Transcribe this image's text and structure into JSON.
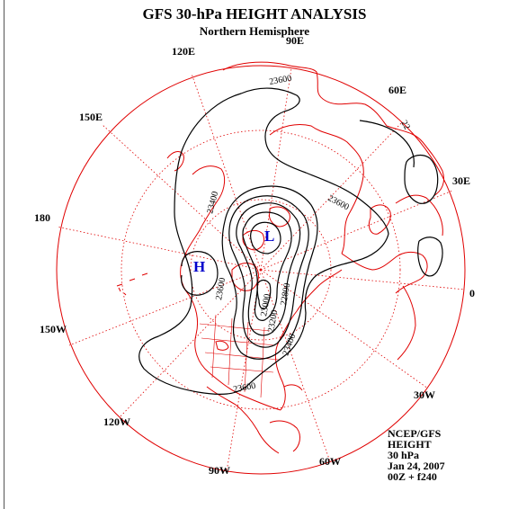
{
  "header": {
    "title": "GFS 30-hPa HEIGHT ANALYSIS",
    "subtitle": "Northern Hemisphere"
  },
  "longitude_labels": [
    {
      "id": "lon-90e",
      "text": "90E"
    },
    {
      "id": "lon-60e",
      "text": "60E"
    },
    {
      "id": "lon-30e",
      "text": "30E"
    },
    {
      "id": "lon-0",
      "text": "0"
    },
    {
      "id": "lon-30w",
      "text": "30W"
    },
    {
      "id": "lon-60w",
      "text": "60W"
    },
    {
      "id": "lon-90w",
      "text": "90W"
    },
    {
      "id": "lon-120w",
      "text": "120W"
    },
    {
      "id": "lon-150w",
      "text": "150W"
    },
    {
      "id": "lon-180",
      "text": "180"
    },
    {
      "id": "lon-150e",
      "text": "150E"
    },
    {
      "id": "lon-120e",
      "text": "120E"
    }
  ],
  "contour_labels": {
    "c1": "23600",
    "c2": "23600",
    "c3": "23400",
    "c4": "23600",
    "c5": "23400",
    "c6": "23200",
    "c7": "23000",
    "c8": "22800",
    "c9": "23600",
    "c10": "22"
  },
  "systems": {
    "low": "L",
    "high": "H"
  },
  "info_block": {
    "line1": "NCEP/GFS",
    "line2": "HEIGHT",
    "line3": "30 hPa",
    "line4": "Jan 24, 2007",
    "line5": "00Z + f240"
  },
  "colors": {
    "map_lines": "#e00000",
    "contours": "#000000",
    "system_markers": "#0000cc"
  }
}
